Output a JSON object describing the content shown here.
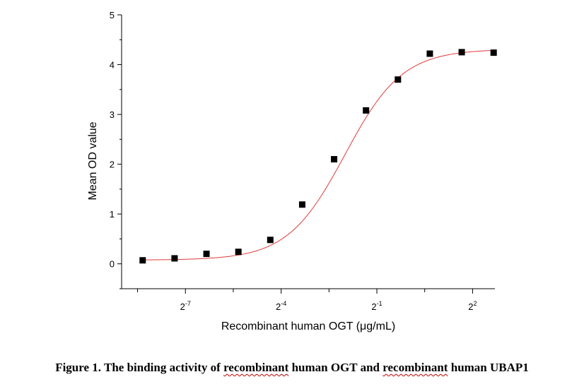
{
  "chart_data": {
    "type": "scatter",
    "title": "",
    "xlabel": "Recombinant human OGT (μg/mL)",
    "ylabel": "Mean OD value",
    "x_scale": "log2",
    "x_ticks": [
      {
        "exponent": -7,
        "base": "2",
        "exp": "-7"
      },
      {
        "exponent": -4,
        "base": "2",
        "exp": "-4"
      },
      {
        "exponent": -1,
        "base": "2",
        "exp": "-1"
      },
      {
        "exponent": 2,
        "base": "2",
        "exp": "2"
      }
    ],
    "y_ticks": [
      "0",
      "1",
      "2",
      "3",
      "4",
      "5"
    ],
    "ylim": [
      -0.5,
      5
    ],
    "xlim_log2": [
      -9.0,
      2.7
    ],
    "grid": false,
    "series": [
      {
        "marker": "square",
        "color": "#000000",
        "x_log2": [
          -8.34,
          -7.34,
          -6.34,
          -5.34,
          -4.34,
          -3.34,
          -2.34,
          -1.34,
          -0.34,
          0.66,
          1.66,
          2.66
        ],
        "y": [
          0.07,
          0.11,
          0.2,
          0.24,
          0.48,
          1.19,
          2.1,
          3.08,
          3.7,
          4.22,
          4.25,
          4.24
        ]
      }
    ],
    "fit_curve": {
      "color": "#e03a3a",
      "model": "4PL",
      "bottom": 0.075,
      "top": 4.31,
      "ec50_log2": -2.0,
      "slope_log2": 0.9
    }
  },
  "caption": {
    "prefix": "Figure 1. The binding activity of ",
    "word1": "recombinant",
    "middle": " human OGT and ",
    "word2": "recombinant",
    "suffix": " human UBAP1"
  }
}
